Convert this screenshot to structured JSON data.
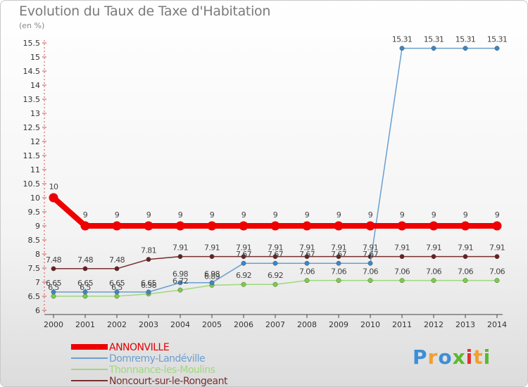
{
  "page": {
    "title": "Evolution du Taux de Taxe d'Habitation",
    "subtitle": "(en %)",
    "logo": [
      "P",
      "r",
      "o",
      "x",
      "i",
      "t",
      "i"
    ],
    "logo_colors": [
      "#3b8fd6",
      "#f0a030",
      "#3b8fd6",
      "#5bb82e",
      "#e03030",
      "#f0a030",
      "#5bb82e"
    ]
  },
  "chart_data": {
    "type": "line",
    "x": [
      "2000",
      "2001",
      "2002",
      "2003",
      "2004",
      "2005",
      "2006",
      "2007",
      "2008",
      "2009",
      "2010",
      "2011",
      "2012",
      "2013",
      "2014"
    ],
    "ylim": [
      6,
      15.5
    ],
    "yticks": [
      "6",
      "6.5",
      "7",
      "7.5",
      "8",
      "8.5",
      "9",
      "9.5",
      "10",
      "10.5",
      "11",
      "11.5",
      "12",
      "12.5",
      "13",
      "13.5",
      "14",
      "14.5",
      "15",
      "15.5"
    ],
    "grid": false,
    "legend_position": "bottom-left",
    "series": [
      {
        "name": "ANNONVILLE",
        "color": "#ee0000",
        "width": 8,
        "marker_fill": "#ee0000",
        "values": [
          10,
          9,
          9,
          9,
          9,
          9,
          9,
          9,
          9,
          9,
          9,
          9,
          9,
          9,
          9
        ],
        "labels": [
          "10",
          "9",
          "9",
          "9",
          "9",
          "9",
          "9",
          "9",
          "9",
          "9",
          "9",
          "9",
          "9",
          "9",
          "9"
        ]
      },
      {
        "name": "Domremy-Landéville",
        "color": "#6a9fd0",
        "width": 1.5,
        "marker_fill": "#3a86c8",
        "values": [
          6.65,
          6.65,
          6.65,
          6.65,
          6.98,
          6.98,
          7.67,
          7.67,
          7.67,
          7.67,
          7.67,
          15.31,
          15.31,
          15.31,
          15.31
        ],
        "labels": [
          "6.65",
          "6.65",
          "6.65",
          "6.65",
          "6.98",
          "6.98",
          "7.67",
          "7.67",
          "7.67",
          "7.67",
          "7.67",
          "15.31",
          "15.31",
          "15.31",
          "15.31"
        ]
      },
      {
        "name": "Thonnance-les-Moulins",
        "color": "#9fd87a",
        "width": 1.5,
        "marker_fill": "#7ad040",
        "values": [
          6.5,
          6.5,
          6.5,
          6.58,
          6.72,
          6.89,
          6.92,
          6.92,
          7.06,
          7.06,
          7.06,
          7.06,
          7.06,
          7.06,
          7.06
        ],
        "labels": [
          "6.5",
          "6.5",
          "6.5",
          "6.58",
          "6.72",
          "6.89",
          "6.92",
          "6.92",
          "7.06",
          "7.06",
          "7.06",
          "7.06",
          "7.06",
          "7.06",
          "7.06"
        ]
      },
      {
        "name": "Noncourt-sur-le-Rongeant",
        "color": "#7a3030",
        "width": 1.5,
        "marker_fill": "#6a1f1f",
        "values": [
          7.48,
          7.48,
          7.48,
          7.81,
          7.91,
          7.91,
          7.91,
          7.91,
          7.91,
          7.91,
          7.91,
          7.91,
          7.91,
          7.91,
          7.91
        ],
        "labels": [
          "7.48",
          "7.48",
          "7.48",
          "7.81",
          "7.91",
          "7.91",
          "7.91",
          "7.91",
          "7.91",
          "7.91",
          "7.91",
          "7.91",
          "7.91",
          "7.91",
          "7.91"
        ]
      }
    ]
  }
}
